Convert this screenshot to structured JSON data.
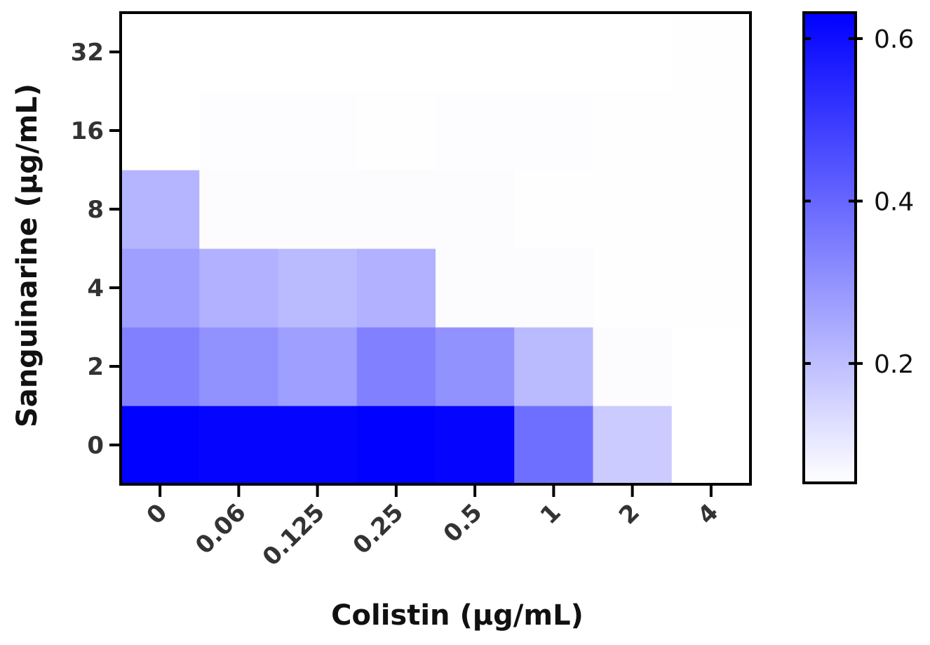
{
  "chart_data": {
    "type": "heatmap",
    "title": "",
    "xlabel": "Colistin (μg/mL)",
    "ylabel": "Sanguinarine (μg/mL)",
    "x_categories": [
      "0",
      "0.06",
      "0.125",
      "0.25",
      "0.5",
      "1",
      "2",
      "4"
    ],
    "y_categories": [
      "0",
      "2",
      "4",
      "8",
      "16",
      "32"
    ],
    "values": [
      [
        0.63,
        0.62,
        0.62,
        0.63,
        0.62,
        0.38,
        0.17,
        0.05
      ],
      [
        0.34,
        0.3,
        0.27,
        0.34,
        0.3,
        0.21,
        0.06,
        0.05
      ],
      [
        0.27,
        0.23,
        0.21,
        0.23,
        0.06,
        0.06,
        0.055,
        0.055
      ],
      [
        0.22,
        0.06,
        0.06,
        0.06,
        0.06,
        0.055,
        0.055,
        0.055
      ],
      [
        0.053,
        0.057,
        0.057,
        0.055,
        0.057,
        0.057,
        0.055,
        0.055
      ],
      [
        0.053,
        0.053,
        0.053,
        0.053,
        0.053,
        0.053,
        0.053,
        0.056
      ]
    ],
    "colorbar": {
      "range": [
        0.053,
        0.632
      ],
      "ticks": [
        0.2,
        0.4,
        0.6
      ],
      "tick_labels": [
        "0.2",
        "0.4",
        "0.6"
      ],
      "color_low": "#ffffff",
      "color_high": "#0000ff"
    }
  }
}
